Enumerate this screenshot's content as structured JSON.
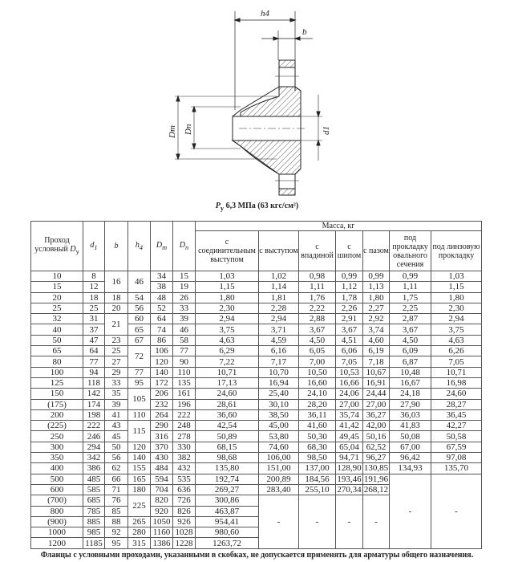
{
  "drawing": {
    "labels": {
      "h4": "h4",
      "b": "b",
      "Dm": "Dm",
      "Dn": "Dn",
      "d1": "d1"
    },
    "caption_symbol": "P",
    "caption_sub": "у",
    "caption_text": " 6,3 МПа (63 кгс/см²)"
  },
  "table": {
    "headers": {
      "dy": "Проход условный ",
      "dy_sym": "D",
      "dy_sub": "у",
      "d1": "d",
      "d1_sub": "1",
      "b": "b",
      "h4": "h",
      "h4_sub": "4",
      "dm": "D",
      "dm_sub": "m",
      "dn": "D",
      "dn_sub": "п",
      "mass": "Масса, кг",
      "mass_cols": [
        "с соединительным выступом",
        "с выступом",
        "с впадиной",
        "с шипом",
        "с пазом",
        "под прокладку овального сечения",
        "под линзовую прокладку"
      ]
    },
    "rows": [
      [
        "10",
        "8",
        "16",
        "46",
        "34",
        "15",
        "1,03",
        "1,02",
        "0,98",
        "0,99",
        "0,99",
        "0,99",
        "1,03"
      ],
      [
        "15",
        "12",
        "16",
        "46",
        "38",
        "19",
        "1,15",
        "1,14",
        "1,11",
        "1,12",
        "1,13",
        "1,11",
        "1,15"
      ],
      [
        "20",
        "18",
        "18",
        "54",
        "48",
        "26",
        "1,80",
        "1,81",
        "1,76",
        "1,78",
        "1,80",
        "1,75",
        "1,80"
      ],
      [
        "25",
        "25",
        "20",
        "56",
        "52",
        "33",
        "2,30",
        "2,28",
        "2,22",
        "2,26",
        "2,27",
        "2,25",
        "2,30"
      ],
      [
        "32",
        "31",
        "21",
        "60",
        "64",
        "39",
        "2,94",
        "2,94",
        "2,88",
        "2,91",
        "2,92",
        "2,87",
        "2,94"
      ],
      [
        "40",
        "37",
        "21",
        "65",
        "74",
        "46",
        "3,75",
        "3,71",
        "3,67",
        "3,67",
        "3,74",
        "3,67",
        "3,75"
      ],
      [
        "50",
        "47",
        "23",
        "67",
        "86",
        "58",
        "4,63",
        "4,59",
        "4,50",
        "4,51",
        "4,60",
        "4,50",
        "4,63"
      ],
      [
        "65",
        "64",
        "25",
        "72",
        "106",
        "77",
        "6,29",
        "6,16",
        "6,05",
        "6,06",
        "6,19",
        "6,09",
        "6,26"
      ],
      [
        "80",
        "77",
        "27",
        "72",
        "120",
        "90",
        "7,22",
        "7,17",
        "7,00",
        "7,05",
        "7,18",
        "6,87",
        "7,05"
      ],
      [
        "100",
        "94",
        "29",
        "77",
        "140",
        "110",
        "10,71",
        "10,70",
        "10,50",
        "10,53",
        "10,67",
        "10,48",
        "10,71"
      ],
      [
        "125",
        "118",
        "33",
        "95",
        "172",
        "135",
        "17,13",
        "16,94",
        "16,60",
        "16,66",
        "16,91",
        "16,67",
        "16,98"
      ],
      [
        "150",
        "142",
        "35",
        "105",
        "206",
        "161",
        "24,60",
        "25,40",
        "24,10",
        "24,06",
        "24,44",
        "24,18",
        "24,60"
      ],
      [
        "(175)",
        "174",
        "39",
        "105",
        "232",
        "196",
        "28,61",
        "30,10",
        "28,20",
        "27,00",
        "27,00",
        "27,90",
        "28,27"
      ],
      [
        "200",
        "198",
        "41",
        "110",
        "264",
        "222",
        "36,60",
        "38,50",
        "36,11",
        "35,74",
        "36,27",
        "36,03",
        "36,45"
      ],
      [
        "(225)",
        "222",
        "43",
        "115",
        "290",
        "248",
        "42,54",
        "45,00",
        "41,60",
        "41,42",
        "42,00",
        "41,83",
        "42,27"
      ],
      [
        "250",
        "246",
        "45",
        "115",
        "316",
        "278",
        "50,89",
        "53,80",
        "50,30",
        "49,45",
        "50,16",
        "50,08",
        "50,58"
      ],
      [
        "300",
        "294",
        "50",
        "120",
        "370",
        "330",
        "68,15",
        "74,60",
        "68,30",
        "65,04",
        "62,52",
        "67,00",
        "67,59"
      ],
      [
        "350",
        "342",
        "56",
        "140",
        "430",
        "382",
        "98,68",
        "106,00",
        "98,50",
        "94,71",
        "96,27",
        "96,42",
        "97,08"
      ],
      [
        "400",
        "386",
        "62",
        "155",
        "484",
        "432",
        "135,80",
        "151,00",
        "137,00",
        "128,90",
        "130,85",
        "134,93",
        "135,70"
      ],
      [
        "500",
        "485",
        "66",
        "165",
        "594",
        "535",
        "192,74",
        "200,89",
        "184,56",
        "193,46",
        "191,96",
        "-",
        "-"
      ],
      [
        "600",
        "585",
        "71",
        "180",
        "704",
        "636",
        "269,27",
        "283,40",
        "255,10",
        "270,34",
        "268,12",
        "-",
        "-"
      ],
      [
        "(700)",
        "685",
        "76",
        "225",
        "820",
        "726",
        "300,86",
        "-",
        "-",
        "-",
        "-",
        "-",
        "-"
      ],
      [
        "800",
        "785",
        "85",
        "225",
        "920",
        "826",
        "463,87",
        "-",
        "-",
        "-",
        "-",
        "-",
        "-"
      ],
      [
        "(900)",
        "885",
        "88",
        "265",
        "1050",
        "926",
        "954,41",
        "-",
        "-",
        "-",
        "-",
        "-",
        "-"
      ],
      [
        "1000",
        "985",
        "92",
        "280",
        "1160",
        "1028",
        "980,60",
        "-",
        "-",
        "-",
        "-",
        "-",
        "-"
      ],
      [
        "1200",
        "1185",
        "95",
        "315",
        "1386",
        "1228",
        "1263,72",
        "-",
        "-",
        "-",
        "-",
        "-",
        "-"
      ]
    ]
  },
  "footnote": "Фланцы с условными проходами, указанными в скобках, не допускается применять для арматуры общего назначения."
}
